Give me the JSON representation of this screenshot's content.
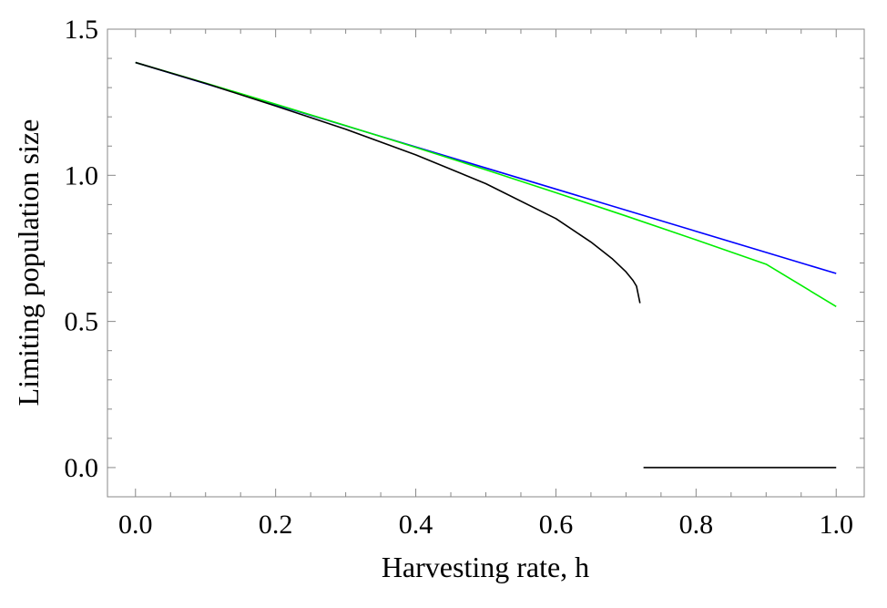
{
  "chart_data": {
    "type": "line",
    "title": "",
    "xlabel": "Harvesting rate, h",
    "ylabel": "Limiting population size",
    "xlim": [
      -0.04,
      1.04
    ],
    "ylim": [
      -0.1,
      1.5
    ],
    "xticks": [
      0.0,
      0.2,
      0.4,
      0.6,
      0.8,
      1.0
    ],
    "xtick_labels": [
      "0.0",
      "0.2",
      "0.4",
      "0.6",
      "0.8",
      "1.0"
    ],
    "yticks": [
      0.0,
      0.5,
      1.0,
      1.5
    ],
    "ytick_labels": [
      "0.0",
      "0.5",
      "1.0",
      "1.5"
    ],
    "grid": false,
    "legend": "none",
    "series": [
      {
        "color": "#0000ff",
        "points": [
          [
            0.0,
            1.386
          ],
          [
            1.0,
            0.664
          ]
        ]
      },
      {
        "color": "#00ee00",
        "points": [
          [
            0.0,
            1.386
          ],
          [
            0.1,
            1.3156
          ],
          [
            0.2,
            1.2435
          ],
          [
            0.3,
            1.1701
          ],
          [
            0.4,
            1.0952
          ],
          [
            0.5,
            1.0189
          ],
          [
            0.6,
            0.9406
          ],
          [
            0.7,
            0.8608
          ],
          [
            0.8,
            0.7792
          ],
          [
            0.9,
            0.6958
          ],
          [
            1.0,
            0.551
          ]
        ]
      },
      {
        "color": "#000000",
        "points": [
          [
            0.0,
            1.386
          ],
          [
            0.1,
            1.3144
          ],
          [
            0.2,
            1.2374
          ],
          [
            0.3,
            1.1577
          ],
          [
            0.4,
            1.0699
          ],
          [
            0.5,
            0.9714
          ],
          [
            0.6,
            0.8518
          ],
          [
            0.65,
            0.7716
          ],
          [
            0.68,
            0.7153
          ],
          [
            0.7,
            0.6697
          ],
          [
            0.71,
            0.6403
          ],
          [
            0.715,
            0.6207
          ],
          [
            0.72,
            0.5625
          ]
        ]
      },
      {
        "color": "#000000",
        "points": [
          [
            0.725,
            0.0
          ],
          [
            1.0,
            0.0
          ]
        ]
      }
    ]
  }
}
